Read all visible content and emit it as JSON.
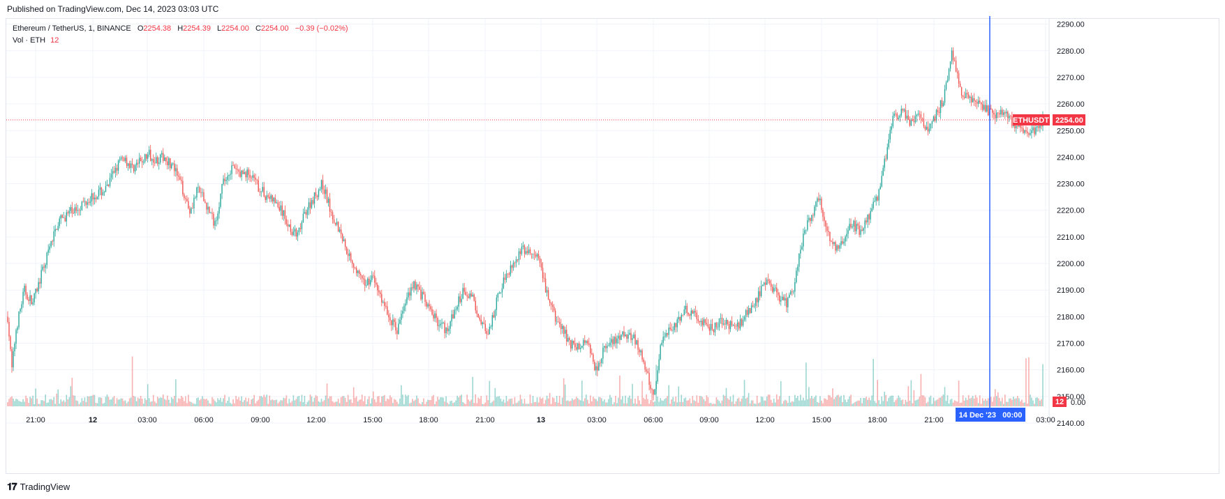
{
  "published_text": "Published on TradingView.com, Dec 14, 2023 03:03 UTC",
  "legend": {
    "symbol": "Ethereum / TetherUS, 1, BINANCE",
    "open_label": "O",
    "open": "2254.38",
    "high_label": "H",
    "high": "2254.39",
    "low_label": "L",
    "low": "2254.00",
    "close_label": "C",
    "close": "2254.00",
    "change": "−0.39 (−0.02%)",
    "vol_label": "Vol · ETH",
    "vol_value": "12"
  },
  "price_badge": {
    "symbol": "ETHUSDT",
    "price": "2254.00"
  },
  "volume_badge": "12",
  "crosshair_label": "14 Dec '23   00:00",
  "footer_brand": "TradingView",
  "colors": {
    "up": "#26a69a",
    "down": "#ef5350",
    "crosshair": "#2962ff",
    "price_line": "#f23645",
    "grid": "#f0f3fa"
  },
  "chart_data": {
    "type": "candlestick",
    "symbol": "ETHUSDT",
    "interval": "1",
    "y_ticks": [
      "2290.00",
      "2280.00",
      "2270.00",
      "2260.00",
      "2250.00",
      "2240.00",
      "2230.00",
      "2220.00",
      "2210.00",
      "2200.00",
      "2190.00",
      "2180.00",
      "2170.00",
      "2160.00",
      "2150.00",
      "2140.00"
    ],
    "ylim": [
      2140,
      2292
    ],
    "x_ticks": [
      "21:00",
      "12",
      "03:00",
      "06:00",
      "09:00",
      "12:00",
      "15:00",
      "18:00",
      "21:00",
      "13",
      "03:00",
      "06:00",
      "09:00",
      "12:00",
      "15:00",
      "18:00",
      "21:00",
      "00:00",
      "03:00"
    ],
    "x_ticks_bold": [
      "12",
      "13"
    ],
    "last_price": 2254.0,
    "crosshair_time": "14 Dec '23 00:00",
    "price_path": [
      [
        0,
        2180
      ],
      [
        0.5,
        2160
      ],
      [
        1,
        2175
      ],
      [
        2,
        2190
      ],
      [
        3,
        2185
      ],
      [
        4,
        2195
      ],
      [
        5,
        2205
      ],
      [
        6,
        2215
      ],
      [
        7,
        2218
      ],
      [
        8,
        2220
      ],
      [
        10,
        2225
      ],
      [
        12,
        2228
      ],
      [
        13,
        2236
      ],
      [
        14,
        2240
      ],
      [
        15,
        2236
      ],
      [
        16,
        2238
      ],
      [
        17,
        2241
      ],
      [
        18,
        2239
      ],
      [
        19,
        2240
      ],
      [
        20,
        2236
      ],
      [
        21,
        2229
      ],
      [
        22,
        2220
      ],
      [
        23,
        2228
      ],
      [
        24,
        2222
      ],
      [
        25,
        2215
      ],
      [
        26,
        2230
      ],
      [
        27,
        2236
      ],
      [
        28,
        2234
      ],
      [
        29,
        2234
      ],
      [
        30,
        2230
      ],
      [
        31,
        2226
      ],
      [
        32,
        2224
      ],
      [
        33,
        2220
      ],
      [
        34,
        2214
      ],
      [
        35,
        2210
      ],
      [
        36,
        2220
      ],
      [
        37,
        2225
      ],
      [
        38,
        2230
      ],
      [
        39,
        2220
      ],
      [
        40,
        2213
      ],
      [
        41,
        2205
      ],
      [
        42,
        2198
      ],
      [
        43,
        2192
      ],
      [
        44,
        2195
      ],
      [
        45,
        2188
      ],
      [
        46,
        2180
      ],
      [
        47,
        2175
      ],
      [
        48,
        2185
      ],
      [
        49,
        2193
      ],
      [
        50,
        2188
      ],
      [
        51,
        2182
      ],
      [
        52,
        2178
      ],
      [
        53,
        2175
      ],
      [
        54,
        2182
      ],
      [
        55,
        2190
      ],
      [
        56,
        2188
      ],
      [
        57,
        2180
      ],
      [
        58,
        2172
      ],
      [
        59,
        2185
      ],
      [
        60,
        2195
      ],
      [
        61,
        2200
      ],
      [
        62,
        2205
      ],
      [
        63,
        2204
      ],
      [
        64,
        2202
      ],
      [
        65,
        2190
      ],
      [
        66,
        2180
      ],
      [
        67,
        2175
      ],
      [
        68,
        2170
      ],
      [
        69,
        2168
      ],
      [
        70,
        2172
      ],
      [
        71,
        2160
      ],
      [
        72,
        2168
      ],
      [
        73,
        2170
      ],
      [
        74,
        2172
      ],
      [
        75,
        2174
      ],
      [
        76,
        2170
      ],
      [
        77,
        2160
      ],
      [
        78,
        2150
      ],
      [
        79,
        2172
      ],
      [
        80,
        2176
      ],
      [
        81,
        2178
      ],
      [
        82,
        2183
      ],
      [
        83,
        2180
      ],
      [
        84,
        2178
      ],
      [
        85,
        2175
      ],
      [
        86,
        2178
      ],
      [
        87,
        2177
      ],
      [
        88,
        2176
      ],
      [
        89,
        2180
      ],
      [
        90,
        2184
      ],
      [
        91,
        2190
      ],
      [
        92,
        2193
      ],
      [
        93,
        2188
      ],
      [
        94,
        2185
      ],
      [
        95,
        2192
      ],
      [
        96,
        2210
      ],
      [
        97,
        2218
      ],
      [
        98,
        2225
      ],
      [
        99,
        2212
      ],
      [
        100,
        2205
      ],
      [
        101,
        2210
      ],
      [
        102,
        2215
      ],
      [
        103,
        2212
      ],
      [
        104,
        2218
      ],
      [
        105,
        2225
      ],
      [
        106,
        2240
      ],
      [
        107,
        2255
      ],
      [
        108,
        2258
      ],
      [
        109,
        2252
      ],
      [
        110,
        2256
      ],
      [
        111,
        2250
      ],
      [
        112,
        2255
      ],
      [
        113,
        2262
      ],
      [
        114,
        2280
      ],
      [
        115,
        2265
      ],
      [
        116,
        2262
      ],
      [
        117,
        2260
      ],
      [
        118,
        2258
      ],
      [
        119,
        2256
      ],
      [
        120,
        2258
      ],
      [
        121,
        2254
      ],
      [
        122,
        2252
      ],
      [
        123,
        2249
      ],
      [
        124,
        2250
      ],
      [
        125,
        2254
      ]
    ],
    "volume_scale_label": "0.00"
  }
}
